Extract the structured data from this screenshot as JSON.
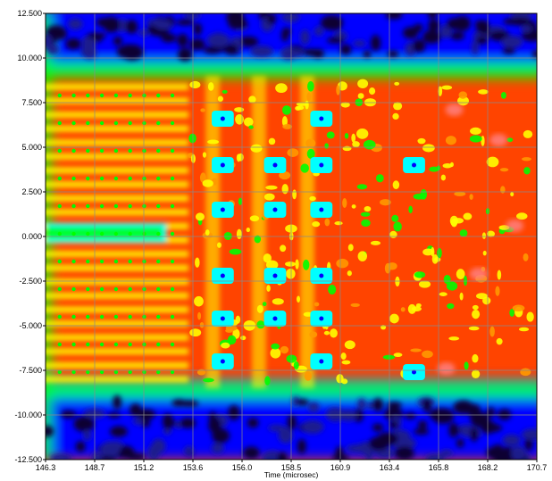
{
  "chart_data": {
    "type": "heatmap",
    "title": "",
    "xlabel": "Time (microsec)",
    "ylabel": "",
    "xlim": [
      146.3,
      170.7
    ],
    "ylim": [
      -12.5,
      12.5
    ],
    "x_ticks": [
      "146.3",
      "148.7",
      "151.2",
      "153.6",
      "156.0",
      "158.5",
      "160.9",
      "163.4",
      "165.8",
      "168.2",
      "170.7"
    ],
    "y_ticks": [
      "12.500",
      "10.000",
      "7.500",
      "5.000",
      "2.500",
      "0.000",
      "-2.500",
      "-5.000",
      "-7.500",
      "-10.000",
      "-12.500"
    ],
    "grid": true,
    "colormap": [
      "#100030",
      "#1a1a8c",
      "#0000ff",
      "#00ffff",
      "#00ff00",
      "#ffff00",
      "#ff9900",
      "#ff0000",
      "#ff8080",
      "#ffffff"
    ],
    "regions": [
      {
        "name": "low-top",
        "y_range": [
          9.5,
          12.5
        ],
        "level": "low"
      },
      {
        "name": "low-bottom",
        "y_range": [
          -12.5,
          -8.5
        ],
        "level": "low"
      },
      {
        "name": "high-periodic-left",
        "x_range": [
          146.3,
          153.6
        ],
        "y_range": [
          -8.5,
          9.5
        ],
        "level": "high"
      },
      {
        "name": "high-grid-mid",
        "x_range": [
          153.6,
          160.9
        ],
        "y_range": [
          -8.5,
          9.5
        ],
        "level": "high"
      },
      {
        "name": "high-irregular-right",
        "x_range": [
          160.9,
          170.7
        ],
        "y_range": [
          -8.5,
          9.5
        ],
        "level": "high"
      }
    ]
  }
}
